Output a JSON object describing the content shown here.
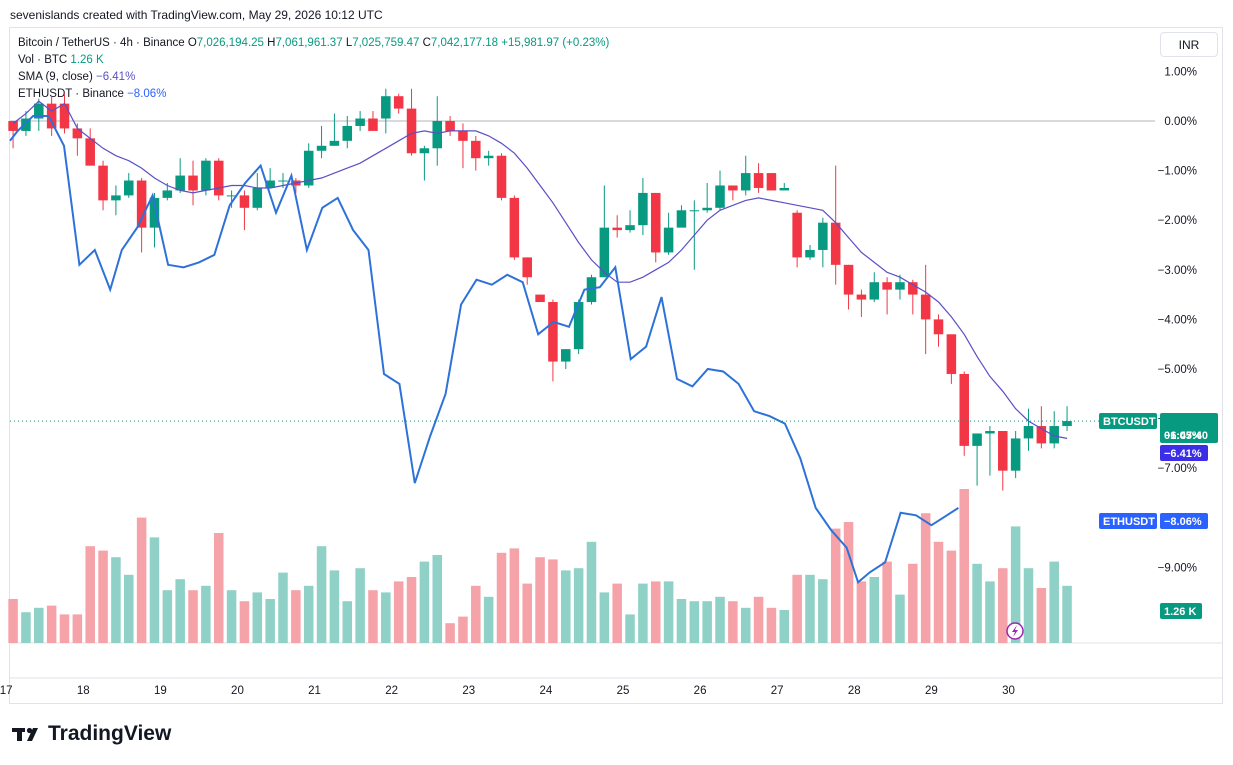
{
  "caption": "sevenislands created with TradingView.com, May 29, 2026 10:12 UTC",
  "legend": {
    "symbol": "Bitcoin / TetherUS · 4h · Binance",
    "o_label": "O",
    "o": "7,026,194.25",
    "h_label": "H",
    "h": "7,061,961.37",
    "l_label": "L",
    "l": "7,025,759.47",
    "c_label": "C",
    "c": "7,042,177.18",
    "change": "+15,981.97 (+0.23%)",
    "vol_label": "Vol · BTC",
    "vol": "1.26 K",
    "sma_label": "SMA (9, close)",
    "sma": "−6.41%",
    "eth_label": "ETHUSDT · Binance",
    "eth": "−8.06%"
  },
  "currency": "INR",
  "brand": "TradingView",
  "badges": {
    "btc_name": "BTCUSDT",
    "btc_value": "−6.05%",
    "btc_timer": "01:47:40",
    "sma_value": "−6.41%",
    "eth_name": "ETHUSDT",
    "eth_value": "−8.06%",
    "vol_value": "1.26 K"
  },
  "colors": {
    "up": "#089981",
    "down": "#f23645",
    "up_vol": "#8fd1c6",
    "down_vol": "#f5a3a8",
    "sma": "#5b4fc7",
    "eth": "#2d72d9"
  },
  "chart_data": {
    "type": "candlestick",
    "y_unit": "%",
    "ylim": [
      -10,
      1.2
    ],
    "y_ticks": [
      1,
      0,
      -1,
      -2,
      -3,
      -4,
      -5,
      -6,
      -7,
      -9
    ],
    "y_tick_labels": [
      "1.00%",
      "0.00%",
      "−1.00%",
      "−2.00%",
      "−3.00%",
      "−4.00%",
      "−5.00%",
      "−6.00%",
      "−7.00%",
      "−9.00%"
    ],
    "x_ticks": [
      17,
      18,
      19,
      20,
      21,
      22,
      23,
      24,
      25,
      26,
      27,
      28,
      29,
      30
    ],
    "x_tick_labels": [
      "17",
      "18",
      "19",
      "20",
      "21",
      "22",
      "23",
      "24",
      "25",
      "26",
      "27",
      "28",
      "29",
      "30"
    ],
    "xlim": [
      17.05,
      31.9
    ],
    "bar_step_days": 0.1667,
    "first_bar_day": 17.09,
    "candles": [
      [
        0,
        -0.2,
        -0.55,
        0.0
      ],
      [
        -0.2,
        0.05,
        -0.3,
        0.2
      ],
      [
        0.05,
        0.35,
        -0.2,
        0.45
      ],
      [
        0.35,
        -0.15,
        -0.3,
        0.5
      ],
      [
        0.35,
        -0.15,
        -0.25,
        0.55
      ],
      [
        -0.15,
        -0.35,
        -0.7,
        -0.05
      ],
      [
        -0.35,
        -0.9,
        -0.9,
        -0.15
      ],
      [
        -0.9,
        -1.6,
        -1.8,
        -0.8
      ],
      [
        -1.6,
        -1.5,
        -1.9,
        -1.3
      ],
      [
        -1.5,
        -1.2,
        -1.55,
        -1.05
      ],
      [
        -1.2,
        -2.15,
        -2.65,
        -1.15
      ],
      [
        -2.15,
        -1.55,
        -2.55,
        -1.45
      ],
      [
        -1.55,
        -1.4,
        -1.6,
        -1.25
      ],
      [
        -1.4,
        -1.1,
        -1.45,
        -0.75
      ],
      [
        -1.1,
        -1.4,
        -1.7,
        -0.8
      ],
      [
        -1.4,
        -0.8,
        -1.5,
        -0.75
      ],
      [
        -0.8,
        -1.5,
        -1.6,
        -0.75
      ],
      [
        -1.5,
        -1.5,
        -1.75,
        -1.4
      ],
      [
        -1.5,
        -1.75,
        -2.2,
        -1.4
      ],
      [
        -1.75,
        -1.35,
        -1.8,
        -1.05
      ],
      [
        -1.35,
        -1.2,
        -1.35,
        -0.95
      ],
      [
        -1.2,
        -1.2,
        -1.35,
        -1.05
      ],
      [
        -1.2,
        -1.3,
        -1.45,
        -1.15
      ],
      [
        -1.3,
        -0.6,
        -1.35,
        -0.45
      ],
      [
        -0.6,
        -0.5,
        -0.75,
        -0.1
      ],
      [
        -0.5,
        -0.4,
        -0.5,
        0.15
      ],
      [
        -0.4,
        -0.1,
        -0.55,
        0.1
      ],
      [
        -0.1,
        0.05,
        -0.2,
        0.2
      ],
      [
        0.05,
        -0.2,
        -0.15,
        0.2
      ],
      [
        0.05,
        0.5,
        -0.25,
        0.65
      ],
      [
        0.5,
        0.25,
        0.15,
        0.55
      ],
      [
        0.25,
        -0.65,
        -0.7,
        0.65
      ],
      [
        -0.65,
        -0.55,
        -1.2,
        -0.5
      ],
      [
        -0.55,
        0.0,
        -0.9,
        0.5
      ],
      [
        0.0,
        -0.2,
        -0.3,
        0.1
      ],
      [
        -0.2,
        -0.4,
        -0.95,
        -0.05
      ],
      [
        -0.4,
        -0.75,
        -1.0,
        -0.3
      ],
      [
        -0.75,
        -0.7,
        -0.9,
        -0.6
      ],
      [
        -0.7,
        -1.55,
        -1.6,
        -0.65
      ],
      [
        -1.55,
        -2.75,
        -2.8,
        -1.5
      ],
      [
        -2.75,
        -3.15,
        -3.3,
        -2.75
      ],
      [
        -3.5,
        -3.65,
        -3.6,
        -3.5
      ],
      [
        -3.65,
        -4.85,
        -5.25,
        -3.6
      ],
      [
        -4.85,
        -4.6,
        -5.0,
        -4.6
      ],
      [
        -4.6,
        -3.65,
        -4.7,
        -3.6
      ],
      [
        -3.65,
        -3.15,
        -3.7,
        -3.1
      ],
      [
        -3.15,
        -2.15,
        -3.15,
        -1.3
      ],
      [
        -2.15,
        -2.2,
        -2.35,
        -1.9
      ],
      [
        -2.2,
        -2.1,
        -2.25,
        -1.8
      ],
      [
        -2.1,
        -1.45,
        -2.3,
        -1.15
      ],
      [
        -1.45,
        -2.65,
        -2.85,
        -1.45
      ],
      [
        -2.65,
        -2.15,
        -2.7,
        -1.85
      ],
      [
        -2.15,
        -1.8,
        -2.1,
        -1.7
      ],
      [
        -1.8,
        -1.8,
        -3.0,
        -1.6
      ],
      [
        -1.8,
        -1.75,
        -1.85,
        -1.25
      ],
      [
        -1.75,
        -1.3,
        -1.8,
        -1.0
      ],
      [
        -1.3,
        -1.4,
        -1.6,
        -1.3
      ],
      [
        -1.4,
        -1.05,
        -1.5,
        -0.7
      ],
      [
        -1.05,
        -1.35,
        -1.45,
        -0.85
      ],
      [
        -1.05,
        -1.4,
        -1.35,
        -1.05
      ],
      [
        -1.4,
        -1.35,
        -1.35,
        -1.25
      ],
      [
        -1.85,
        -2.75,
        -2.95,
        -1.8
      ],
      [
        -2.75,
        -2.6,
        -2.8,
        -2.5
      ],
      [
        -2.6,
        -2.05,
        -2.95,
        -1.95
      ],
      [
        -2.05,
        -2.9,
        -3.3,
        -0.9
      ],
      [
        -2.9,
        -3.5,
        -3.8,
        -2.9
      ],
      [
        -3.5,
        -3.6,
        -3.95,
        -3.4
      ],
      [
        -3.6,
        -3.25,
        -3.65,
        -3.05
      ],
      [
        -3.25,
        -3.4,
        -3.9,
        -3.15
      ],
      [
        -3.4,
        -3.25,
        -3.6,
        -3.1
      ],
      [
        -3.25,
        -3.5,
        -3.9,
        -3.2
      ],
      [
        -3.5,
        -4.0,
        -4.7,
        -2.9
      ],
      [
        -4.0,
        -4.3,
        -4.55,
        -3.9
      ],
      [
        -4.3,
        -5.1,
        -5.3,
        -4.35
      ],
      [
        -5.1,
        -6.55,
        -6.75,
        -5.05
      ],
      [
        -6.55,
        -6.3,
        -7.35,
        -6.3
      ],
      [
        -6.3,
        -6.25,
        -7.15,
        -6.15
      ],
      [
        -6.25,
        -7.05,
        -7.45,
        -6.25
      ],
      [
        -7.05,
        -6.4,
        -7.2,
        -6.25
      ],
      [
        -6.4,
        -6.15,
        -6.65,
        -5.8
      ],
      [
        -6.15,
        -6.5,
        -6.6,
        -5.75
      ],
      [
        -6.5,
        -6.15,
        -6.6,
        -5.85
      ],
      [
        -6.15,
        -6.05,
        -6.25,
        -5.75
      ]
    ],
    "volume": [
      20,
      14,
      16,
      17,
      13,
      13,
      44,
      42,
      39,
      31,
      57,
      48,
      24,
      29,
      24,
      26,
      50,
      24,
      19,
      23,
      20,
      32,
      24,
      26,
      44,
      33,
      19,
      34,
      24,
      23,
      28,
      30,
      37,
      40,
      9,
      12,
      26,
      21,
      41,
      43,
      27,
      39,
      38,
      33,
      34,
      46,
      23,
      27,
      13,
      27,
      28,
      28,
      20,
      19,
      19,
      21,
      19,
      16,
      21,
      16,
      15,
      31,
      31,
      29,
      52,
      55,
      28,
      30,
      37,
      22,
      36,
      59,
      46,
      42,
      70,
      36,
      28,
      34,
      53,
      34,
      25,
      37,
      26
    ],
    "sma": [
      -0.05,
      0.15,
      0.4,
      0.2,
      0.35,
      -0.15,
      -0.35,
      -0.55,
      -0.7,
      -0.8,
      -0.95,
      -1.15,
      -1.3,
      -1.4,
      -1.45,
      -1.4,
      -1.35,
      -1.3,
      -1.3,
      -1.35,
      -1.35,
      -1.3,
      -1.25,
      -1.2,
      -1.15,
      -1.05,
      -0.95,
      -0.85,
      -0.7,
      -0.55,
      -0.4,
      -0.25,
      -0.2,
      -0.25,
      -0.2,
      -0.2,
      -0.2,
      -0.3,
      -0.45,
      -0.65,
      -0.95,
      -1.3,
      -1.65,
      -2.05,
      -2.45,
      -2.8,
      -3.05,
      -3.25,
      -3.25,
      -3.15,
      -3.0,
      -2.85,
      -2.6,
      -2.3,
      -2.0,
      -1.8,
      -1.7,
      -1.6,
      -1.55,
      -1.6,
      -1.65,
      -1.7,
      -1.75,
      -1.8,
      -2.05,
      -2.35,
      -2.65,
      -2.85,
      -3.05,
      -3.15,
      -3.3,
      -3.45,
      -3.65,
      -3.95,
      -4.3,
      -4.75,
      -5.15,
      -5.45,
      -5.8,
      -6.05,
      -6.2,
      -6.35,
      -6.4
    ]
  },
  "eth_overlay": {
    "x": [
      17.05,
      17.15,
      17.35,
      17.55,
      17.75,
      17.95,
      18.15,
      18.35,
      18.5,
      18.7,
      18.9,
      19.1,
      19.3,
      19.5,
      19.7,
      19.9,
      20.1,
      20.3,
      20.5,
      20.7,
      20.9,
      21.1,
      21.3,
      21.5,
      21.7,
      21.9,
      22.1,
      22.3,
      22.5,
      22.7,
      22.9,
      23.1,
      23.3,
      23.5,
      23.7,
      23.9,
      24.1,
      24.3,
      24.5,
      24.7,
      24.9,
      25.1,
      25.3,
      25.5,
      25.7,
      25.9,
      26.1,
      26.3,
      26.5,
      26.7,
      26.9,
      27.1,
      27.3,
      27.5,
      27.7,
      27.9,
      28.05,
      28.2,
      28.4,
      28.6,
      28.8,
      29.0,
      29.15,
      29.35
    ],
    "y": [
      -0.4,
      -0.2,
      0.1,
      0.1,
      -0.5,
      -2.9,
      -2.6,
      -3.4,
      -2.6,
      -2.15,
      -1.5,
      -2.9,
      -2.95,
      -2.85,
      -2.7,
      -1.7,
      -1.25,
      -0.9,
      -1.85,
      -1.1,
      -2.6,
      -1.75,
      -1.55,
      -2.2,
      -2.6,
      -5.1,
      -5.3,
      -7.3,
      -6.35,
      -5.5,
      -3.7,
      -3.2,
      -3.3,
      -3.1,
      -3.25,
      -4.3,
      -4.05,
      -4.15,
      -3.4,
      -3.35,
      -2.95,
      -4.8,
      -4.55,
      -3.55,
      -5.2,
      -5.35,
      -5.0,
      -5.05,
      -5.3,
      -5.85,
      -5.95,
      -6.1,
      -6.8,
      -7.8,
      -8.25,
      -8.6,
      -9.3,
      -9.1,
      -8.9,
      -7.9,
      -7.95,
      -8.15,
      -8.0,
      -7.8
    ]
  }
}
